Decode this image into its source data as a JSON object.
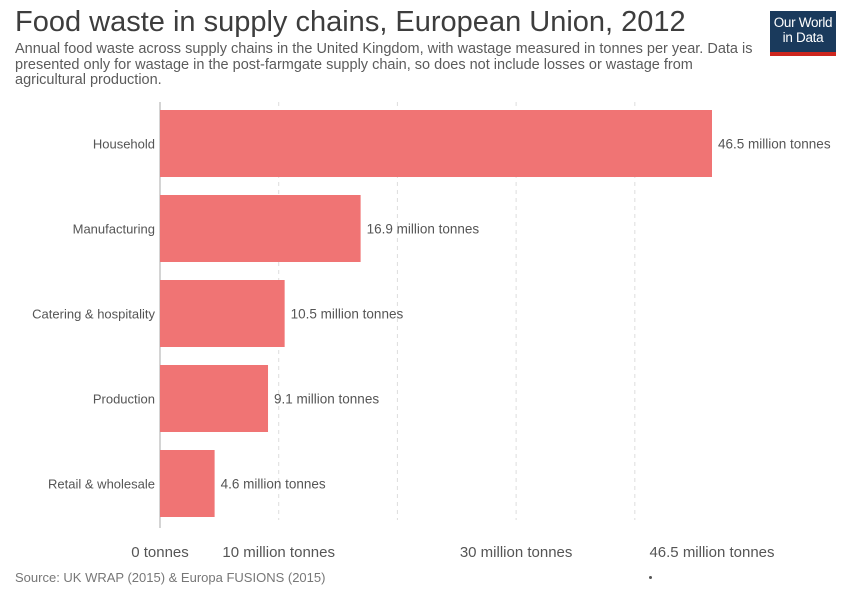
{
  "title": "Food waste in supply chains, European Union, 2012",
  "subtitle": "Annual food waste across supply chains in the United Kingdom, with wastage measured in tonnes per year. Data is presented only for wastage in the post-farmgate supply chain, so does not include losses or wastage from agricultural production.",
  "logo": {
    "line1": "Our World",
    "line2": "in Data"
  },
  "source": "Source: UK WRAP (2015) & Europa FUSIONS (2015)",
  "colors": {
    "bar": "#f07474",
    "grid": "#dddddd",
    "axis": "#aaaaaa",
    "logo_bg": "#1a3a5c",
    "logo_accent": "#ce261e"
  },
  "chart_data": {
    "type": "bar",
    "orientation": "horizontal",
    "categories": [
      "Household",
      "Manufacturing",
      "Catering & hospitality",
      "Production",
      "Retail & wholesale"
    ],
    "values": [
      46.5,
      16.9,
      10.5,
      9.1,
      4.6
    ],
    "data_labels": [
      "46.5 million tonnes",
      "16.9 million tonnes",
      "10.5 million tonnes",
      "9.1 million tonnes",
      "4.6 million tonnes"
    ],
    "unit": "million tonnes",
    "xlim": [
      0,
      46.5
    ],
    "gridlines": [
      10,
      20,
      30,
      40
    ],
    "x_ticks": [
      {
        "value": 0,
        "label": "0 tonnes"
      },
      {
        "value": 10,
        "label": "10 million tonnes"
      },
      {
        "value": 30,
        "label": "30 million tonnes"
      },
      {
        "value": 46.5,
        "label": "46.5 million tonnes"
      }
    ],
    "grid": true
  }
}
